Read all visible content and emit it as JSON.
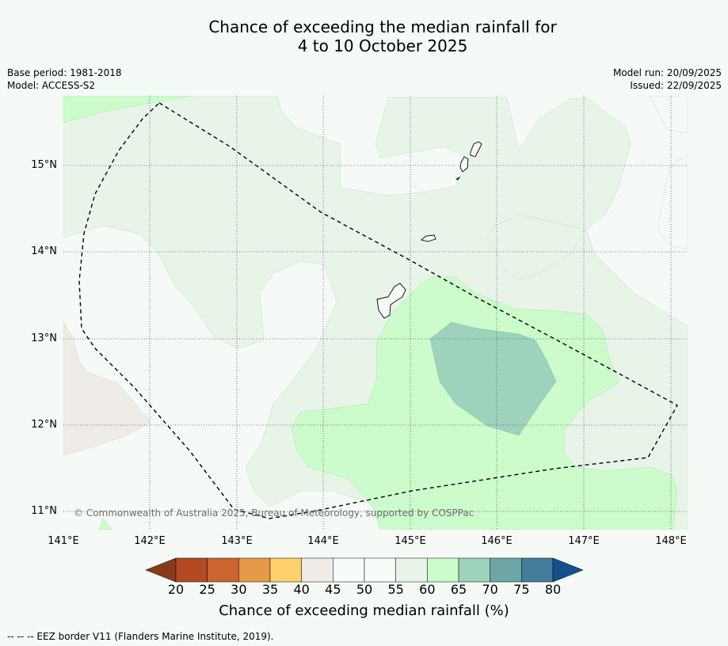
{
  "title": {
    "line1": "Chance of exceeding the median rainfall for",
    "line2": "4 to 10 October 2025"
  },
  "meta": {
    "base_period": "Base period: 1981-2018",
    "model": "Model: ACCESS-S2",
    "model_run": "Model run: 20/09/2025",
    "issued": "Issued: 22/09/2025"
  },
  "map": {
    "lat_labels": [
      "15°N",
      "14°N",
      "13°N",
      "12°N",
      "11°N"
    ],
    "lon_labels": [
      "141°E",
      "142°E",
      "143°E",
      "144°E",
      "145°E",
      "146°E",
      "147°E",
      "148°E"
    ],
    "copyright": "© Commonwealth of Australia 2025, Bureau of Meteorology, supported by COSPPac",
    "colors": {
      "band_45_50": "#efebe6",
      "band_50_55": "#f6faf7",
      "band_55_60": "#e9f4e9",
      "band_60_65": "#ccfccc",
      "band_65_70": "#9ed2bc",
      "eez_line": "#000000"
    }
  },
  "colorbar": {
    "ticks": [
      "20",
      "25",
      "30",
      "35",
      "40",
      "45",
      "50",
      "55",
      "60",
      "65",
      "70",
      "75",
      "80"
    ],
    "colors": [
      "#8a3a1c",
      "#b34a24",
      "#cb6430",
      "#e49a48",
      "#fdd06c",
      "#efebe6",
      "#f8fcf9",
      "#f8fcf9",
      "#e9f4e9",
      "#ccfccc",
      "#9ed2bc",
      "#6ea6a8",
      "#437d9b",
      "#13508c"
    ],
    "title": "Chance of exceeding median rainfall (%)"
  },
  "footnote": "--  --  -- EEZ border V11 (Flanders Marine Institute, 2019)."
}
